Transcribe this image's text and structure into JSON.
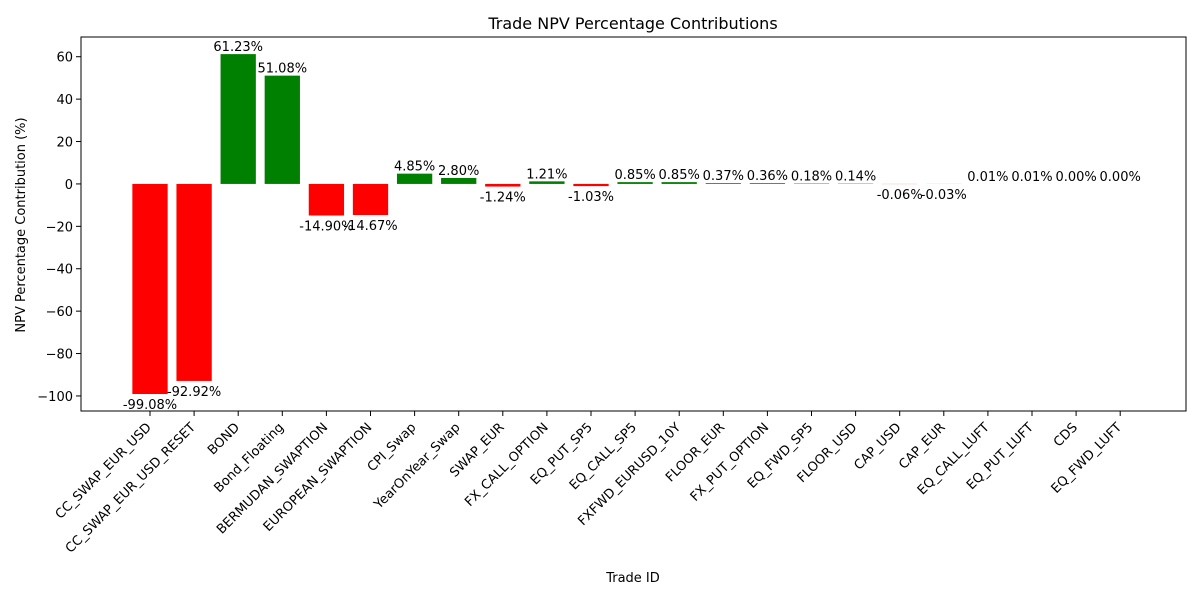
{
  "chart_data": {
    "type": "bar",
    "title": "Trade NPV Percentage Contributions",
    "xlabel": "Trade ID",
    "ylabel": "NPV Percentage Contribution (%)",
    "ylim": [
      -107.1,
      69.3
    ],
    "yticks": [
      -100,
      -80,
      -60,
      -40,
      -20,
      0,
      20,
      40,
      60
    ],
    "ytick_labels": [
      "−100",
      "−80",
      "−60",
      "−40",
      "−20",
      "0",
      "20",
      "40",
      "60"
    ],
    "grid": false,
    "colors": {
      "positive": "#008000",
      "negative": "#ff0000"
    },
    "categories": [
      "CC_SWAP_EUR_USD",
      "CC_SWAP_EUR_USD_RESET",
      "BOND",
      "Bond_Floating",
      "BERMUDAN_SWAPTION",
      "EUROPEAN_SWAPTION",
      "CPI_Swap",
      "YearOnYear_Swap",
      "SWAP_EUR",
      "FX_CALL_OPTION",
      "EQ_PUT_SP5",
      "EQ_CALL_SP5",
      "FXFWD_EURUSD_10Y",
      "FLOOR_EUR",
      "FX_PUT_OPTION",
      "EQ_FWD_SP5",
      "FLOOR_USD",
      "CAP_USD",
      "CAP_EUR",
      "EQ_CALL_LUFT",
      "EQ_PUT_LUFT",
      "CDS",
      "EQ_FWD_LUFT"
    ],
    "values": [
      -99.08,
      -92.92,
      61.23,
      51.08,
      -14.9,
      -14.67,
      4.85,
      2.8,
      -1.24,
      1.21,
      -1.03,
      0.85,
      0.85,
      0.37,
      0.36,
      0.18,
      0.14,
      -0.06,
      -0.03,
      0.01,
      0.01,
      0.0,
      0.0
    ],
    "data_labels": [
      "-99.08%",
      "-92.92%",
      "61.23%",
      "51.08%",
      "-14.90%",
      "-14.67%",
      "4.85%",
      "2.80%",
      "-1.24%",
      "1.21%",
      "-1.03%",
      "0.85%",
      "0.85%",
      "0.37%",
      "0.36%",
      "0.18%",
      "0.14%",
      "-0.06%",
      "-0.03%",
      "0.01%",
      "0.01%",
      "0.00%",
      "0.00%"
    ]
  }
}
